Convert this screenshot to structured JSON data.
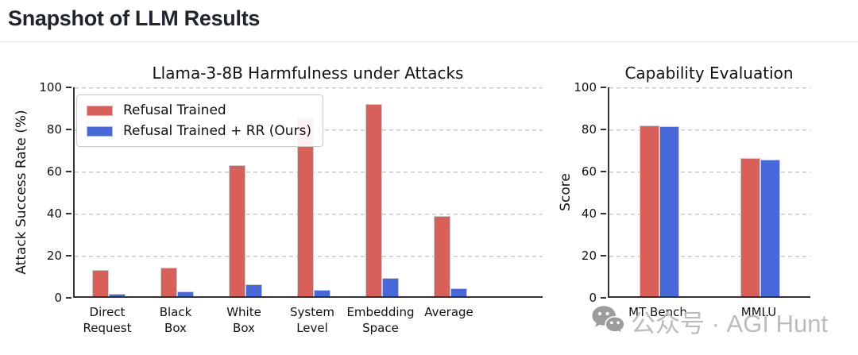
{
  "header": {
    "title": "Snapshot of LLM Results"
  },
  "watermark": {
    "icon": "wechat-icon",
    "text": "公众号 · AGI Hunt"
  },
  "colors": {
    "refusal_trained": "#D95F59",
    "refusal_trained_rr": "#4668D9",
    "grid": "#cbcbcb",
    "spine": "#333333",
    "watermark_gray": "#9c9c9c"
  },
  "chart_data": [
    {
      "type": "bar",
      "title": "Llama-3-8B Harmfulness under Attacks",
      "xlabel": "",
      "ylabel": "Attack Success Rate (%)",
      "ylim": [
        0,
        100
      ],
      "yticks": [
        0,
        20,
        40,
        60,
        80,
        100
      ],
      "grid": "horizontal-dashed",
      "legend_position": "upper-left",
      "show_legend": true,
      "categories": [
        "Direct\nRequest",
        "Black\nBox",
        "White\nBox",
        "System\nLevel",
        "Embedding\nSpace",
        "Average"
      ],
      "series": [
        {
          "name": "Refusal Trained",
          "color": "#D95F59",
          "values": [
            12.3,
            13.5,
            62.2,
            84.8,
            91.2,
            38.0
          ]
        },
        {
          "name": "Refusal Trained + RR (Ours)",
          "color": "#4668D9",
          "values": [
            1.0,
            2.4,
            5.8,
            3.0,
            8.5,
            3.6
          ]
        }
      ]
    },
    {
      "type": "bar",
      "title": "Capability Evaluation",
      "xlabel": "",
      "ylabel": "Score",
      "ylim": [
        0,
        100
      ],
      "yticks": [
        0,
        20,
        40,
        60,
        80,
        100
      ],
      "grid": "horizontal-dashed",
      "legend_position": "none",
      "show_legend": false,
      "categories": [
        "MT Bench",
        "MMLU"
      ],
      "series": [
        {
          "name": "Refusal Trained",
          "color": "#D95F59",
          "values": [
            81.0,
            65.7
          ]
        },
        {
          "name": "Refusal Trained + RR (Ours)",
          "color": "#4668D9",
          "values": [
            80.6,
            65.0
          ]
        }
      ]
    }
  ]
}
